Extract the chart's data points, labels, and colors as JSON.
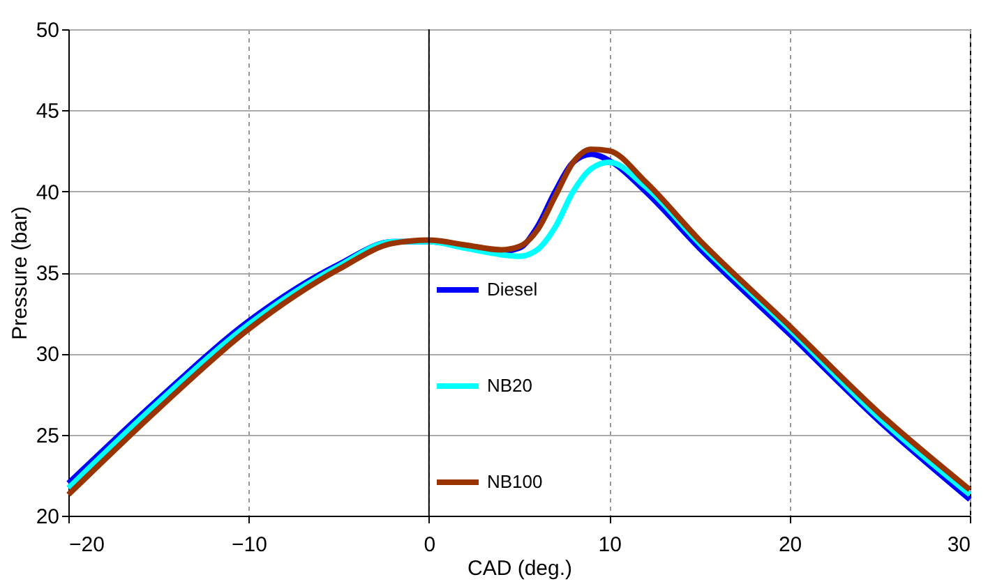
{
  "chart_data": {
    "type": "line",
    "xlabel": "CAD (deg.)",
    "ylabel": "Pressure (bar)",
    "x": [
      -20,
      -15,
      -10,
      -5,
      -2,
      0,
      2,
      4,
      5,
      6,
      7,
      8,
      9,
      10,
      12,
      15,
      20,
      25,
      30
    ],
    "series": [
      {
        "name": "Diesel",
        "color": "#0000ff",
        "values": [
          22,
          27.2,
          32,
          35.5,
          36.9,
          36.9,
          36.6,
          36.3,
          36.5,
          37.8,
          40,
          41.8,
          42.3,
          41.9,
          40,
          36.5,
          31.2,
          25.8,
          21
        ]
      },
      {
        "name": "NB20",
        "color": "#00ffff",
        "values": [
          21.7,
          27,
          31.8,
          35.4,
          36.9,
          36.9,
          36.5,
          36.1,
          36,
          36.4,
          37.8,
          40,
          41.4,
          41.8,
          40.3,
          36.8,
          31.5,
          26,
          21.3
        ]
      },
      {
        "name": "NB100",
        "color": "#993300",
        "values": [
          21.3,
          26.6,
          31.5,
          35.2,
          36.8,
          37,
          36.7,
          36.4,
          36.6,
          37.6,
          39.7,
          41.8,
          42.6,
          42.5,
          40.6,
          37,
          31.7,
          26.3,
          21.6
        ]
      }
    ],
    "xlim": [
      -20,
      30
    ],
    "xticks": [
      -20,
      -10,
      0,
      10,
      20,
      30
    ],
    "ylim": [
      20,
      50
    ],
    "yticks": [
      20,
      25,
      30,
      35,
      40,
      45,
      50
    ],
    "grid": true,
    "legend": "bottom",
    "marker": "none",
    "line_style": "solid",
    "ref_lines": [
      {
        "axis": "x",
        "value": 0,
        "color": "#000000"
      }
    ]
  }
}
